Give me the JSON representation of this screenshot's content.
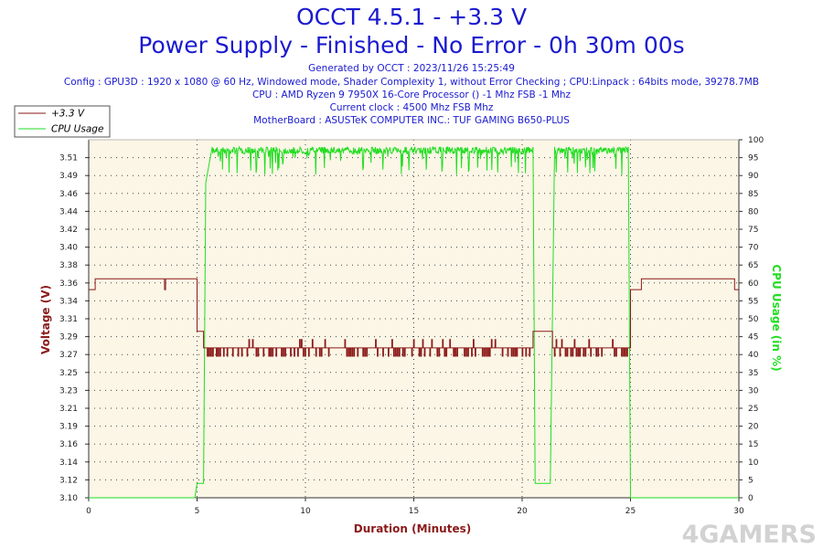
{
  "header": {
    "title": "OCCT 4.5.1 - +3.3 V",
    "subtitle": "Power Supply - Finished - No Error - 0h 30m 00s",
    "info_lines": [
      "Generated by OCCT : 2023/11/26 15:25:49",
      "Config : GPU3D : 1920 x 1080 @ 60 Hz, Windowed mode, Shader Complexity 1, without Error Checking ; CPU:Linpack : 64bits mode, 39278.7MB",
      "CPU : AMD Ryzen 9 7950X 16-Core Processor () -1 Mhz FSB -1 Mhz",
      "Current clock : 4500 Mhz FSB  Mhz",
      "MotherBoard : ASUSTeK COMPUTER INC.: TUF GAMING B650-PLUS"
    ]
  },
  "watermark": "4GAMERS",
  "colors": {
    "voltage": "#8b1a1a",
    "cpu": "#22dd22",
    "plot_bg": "#fbf6e6",
    "title": "#1a1ad0"
  },
  "chart_data": {
    "type": "line",
    "xlabel": "Duration (Minutes)",
    "ylabel_left": "Voltage (V)",
    "ylabel_right": "CPU Usage (in %)",
    "xlim": [
      0,
      30
    ],
    "ylim_left": [
      3.1,
      3.53
    ],
    "ylim_right": [
      0,
      100
    ],
    "x_ticks": [
      0,
      5,
      10,
      15,
      20,
      25,
      30
    ],
    "y_left_ticks": [
      "3.10",
      "3.12",
      "3.14",
      "3.16",
      "3.19",
      "3.21",
      "3.23",
      "3.25",
      "3.27",
      "3.29",
      "3.31",
      "3.34",
      "3.36",
      "3.38",
      "3.40",
      "3.42",
      "3.44",
      "3.46",
      "3.49",
      "3.51"
    ],
    "y_right_ticks": [
      0,
      5,
      10,
      15,
      20,
      25,
      30,
      35,
      40,
      45,
      50,
      55,
      60,
      65,
      70,
      75,
      80,
      85,
      90,
      95,
      100
    ],
    "grid": true,
    "legend_position": "top-left",
    "series": [
      {
        "name": "+3.3 V",
        "axis": "left",
        "x": [
          0,
          0.3,
          0.3,
          3.5,
          3.5,
          3.55,
          3.55,
          5.0,
          5.0,
          5.3,
          5.3,
          20.5,
          20.5,
          21.4,
          21.4,
          25.0,
          25.0,
          25.5,
          25.5,
          29.8,
          29.8,
          30
        ],
        "y": [
          3.35,
          3.35,
          3.363,
          3.363,
          3.35,
          3.35,
          3.363,
          3.363,
          3.3,
          3.3,
          3.28,
          3.28,
          3.3,
          3.3,
          3.28,
          3.28,
          3.35,
          3.35,
          3.363,
          3.363,
          3.35,
          3.35
        ]
      },
      {
        "name": "CPU Usage",
        "axis": "right",
        "x": [
          0,
          4.9,
          5.0,
          5.3,
          5.4,
          5.7,
          20.5,
          20.6,
          21.3,
          21.5,
          24.9,
          25.0,
          30
        ],
        "y": [
          0,
          0,
          4,
          4,
          88,
          98,
          98,
          4,
          4,
          98,
          98,
          0,
          0
        ]
      }
    ]
  }
}
